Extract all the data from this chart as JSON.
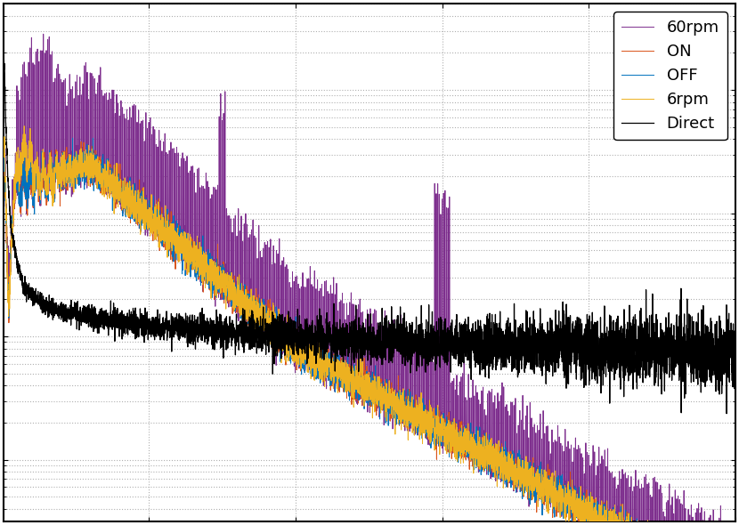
{
  "title": "",
  "xlabel": "",
  "ylabel": "",
  "background_color": "#ffffff",
  "grid_color": "#b0b0b0",
  "lines": [
    {
      "label": "OFF",
      "color": "#0072bd",
      "lw": 0.7,
      "zorder": 4
    },
    {
      "label": "ON",
      "color": "#d95319",
      "lw": 0.7,
      "zorder": 3
    },
    {
      "label": "6rpm",
      "color": "#edb120",
      "lw": 0.7,
      "zorder": 5
    },
    {
      "label": "60rpm",
      "color": "#7e2f8e",
      "lw": 0.7,
      "zorder": 2
    },
    {
      "label": "Direct",
      "color": "#000000",
      "lw": 0.9,
      "zorder": 6
    }
  ],
  "legend_loc": "upper right",
  "legend_fontsize": 13,
  "figsize": [
    8.3,
    5.9
  ],
  "dpi": 100,
  "seed": 1
}
